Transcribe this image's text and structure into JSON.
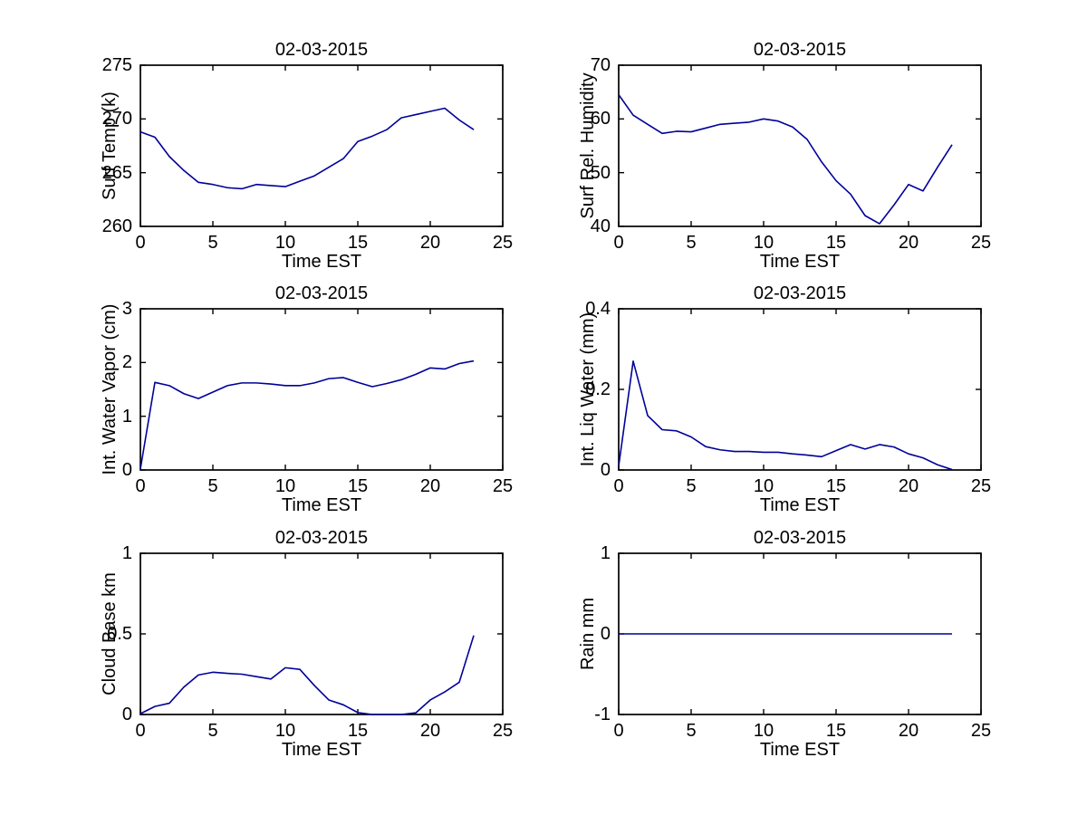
{
  "figure": {
    "background": "#ffffff",
    "axis_color": "#000000",
    "line_color": "#000099",
    "date_shown": "02-03-2015"
  },
  "chart_data": [
    {
      "type": "line",
      "title": "02-03-2015",
      "xlabel": "Time EST",
      "ylabel": "Surf Temp (k)",
      "xlim": [
        0,
        25
      ],
      "ylim": [
        260,
        275
      ],
      "xticks": [
        "0",
        "5",
        "10",
        "15",
        "20",
        "25"
      ],
      "yticks": [
        "260",
        "265",
        "270",
        "275"
      ],
      "grid": false,
      "legend": null,
      "x": [
        0,
        1,
        2,
        3,
        4,
        5,
        6,
        7,
        8,
        9,
        10,
        11,
        12,
        13,
        14,
        15,
        16,
        17,
        18,
        19,
        20,
        21,
        22,
        23
      ],
      "y": [
        268.8,
        268.3,
        266.5,
        265.2,
        264.1,
        263.9,
        263.6,
        263.5,
        263.9,
        263.8,
        263.7,
        264.2,
        264.7,
        265.5,
        266.3,
        267.9,
        268.4,
        269.0,
        270.1,
        270.4,
        270.7,
        271.0,
        269.9,
        269.0
      ]
    },
    {
      "type": "line",
      "title": "02-03-2015",
      "xlabel": "Time EST",
      "ylabel": "Surf Rel. Humidity",
      "xlim": [
        0,
        25
      ],
      "ylim": [
        40,
        70
      ],
      "xticks": [
        "0",
        "5",
        "10",
        "15",
        "20",
        "25"
      ],
      "yticks": [
        "40",
        "50",
        "60",
        "70"
      ],
      "grid": false,
      "legend": null,
      "x": [
        0,
        1,
        2,
        3,
        4,
        5,
        6,
        7,
        8,
        9,
        10,
        11,
        12,
        13,
        14,
        15,
        16,
        17,
        18,
        19,
        20,
        21,
        22,
        23
      ],
      "y": [
        64.5,
        60.7,
        59.0,
        57.3,
        57.7,
        57.6,
        58.3,
        59.0,
        59.2,
        59.4,
        60.0,
        59.6,
        58.5,
        56.2,
        52.0,
        48.5,
        46.0,
        42.0,
        40.5,
        44.0,
        47.8,
        46.6,
        51.0,
        55.2
      ]
    },
    {
      "type": "line",
      "title": "02-03-2015",
      "xlabel": "Time EST",
      "ylabel": "Int. Water Vapor (cm)",
      "xlim": [
        0,
        25
      ],
      "ylim": [
        0,
        3
      ],
      "xticks": [
        "0",
        "5",
        "10",
        "15",
        "20",
        "25"
      ],
      "yticks": [
        "0",
        "1",
        "2",
        "3"
      ],
      "grid": false,
      "legend": null,
      "x": [
        0,
        1,
        2,
        3,
        4,
        5,
        6,
        7,
        8,
        9,
        10,
        11,
        12,
        13,
        14,
        15,
        16,
        17,
        18,
        19,
        20,
        21,
        22,
        23
      ],
      "y": [
        0.02,
        1.63,
        1.57,
        1.42,
        1.33,
        1.45,
        1.57,
        1.62,
        1.62,
        1.6,
        1.57,
        1.57,
        1.62,
        1.7,
        1.72,
        1.63,
        1.55,
        1.61,
        1.68,
        1.78,
        1.9,
        1.88,
        1.98,
        2.03
      ]
    },
    {
      "type": "line",
      "title": "02-03-2015",
      "xlabel": "Time EST",
      "ylabel": "Int. Liq Water (mm)",
      "xlim": [
        0,
        25
      ],
      "ylim": [
        0,
        0.4
      ],
      "xticks": [
        "0",
        "5",
        "10",
        "15",
        "20",
        "25"
      ],
      "yticks": [
        "0",
        "0.2",
        "0.4"
      ],
      "grid": false,
      "legend": null,
      "x": [
        0,
        1,
        2,
        3,
        4,
        5,
        6,
        7,
        8,
        9,
        10,
        11,
        12,
        13,
        14,
        15,
        16,
        17,
        18,
        19,
        20,
        21,
        22,
        23
      ],
      "y": [
        0.01,
        0.27,
        0.135,
        0.1,
        0.097,
        0.082,
        0.058,
        0.05,
        0.046,
        0.046,
        0.044,
        0.044,
        0.04,
        0.037,
        0.033,
        0.048,
        0.063,
        0.052,
        0.063,
        0.057,
        0.04,
        0.03,
        0.013,
        0.001
      ]
    },
    {
      "type": "line",
      "title": "02-03-2015",
      "xlabel": "Time EST",
      "ylabel": "Cloud Base km",
      "xlim": [
        0,
        25
      ],
      "ylim": [
        0,
        1
      ],
      "xticks": [
        "0",
        "5",
        "10",
        "15",
        "20",
        "25"
      ],
      "yticks": [
        "0",
        "0.5",
        "1"
      ],
      "grid": false,
      "legend": null,
      "x": [
        0,
        1,
        2,
        3,
        4,
        5,
        6,
        7,
        8,
        9,
        10,
        11,
        12,
        13,
        14,
        15,
        16,
        17,
        18,
        19,
        20,
        21,
        22,
        23
      ],
      "y": [
        0.005,
        0.05,
        0.07,
        0.17,
        0.245,
        0.262,
        0.255,
        0.25,
        0.235,
        0.22,
        0.29,
        0.28,
        0.18,
        0.09,
        0.06,
        0.012,
        0.0,
        0.0,
        0.0,
        0.01,
        0.09,
        0.14,
        0.2,
        0.49
      ]
    },
    {
      "type": "line",
      "title": "02-03-2015",
      "xlabel": "Time EST",
      "ylabel": "Rain mm",
      "xlim": [
        0,
        25
      ],
      "ylim": [
        -1,
        1
      ],
      "xticks": [
        "0",
        "5",
        "10",
        "15",
        "20",
        "25"
      ],
      "yticks": [
        "-1",
        "0",
        "1"
      ],
      "grid": false,
      "legend": null,
      "x": [
        0,
        1,
        2,
        3,
        4,
        5,
        6,
        7,
        8,
        9,
        10,
        11,
        12,
        13,
        14,
        15,
        16,
        17,
        18,
        19,
        20,
        21,
        22,
        23
      ],
      "y": [
        0,
        0,
        0,
        0,
        0,
        0,
        0,
        0,
        0,
        0,
        0,
        0,
        0,
        0,
        0,
        0,
        0,
        0,
        0,
        0,
        0,
        0,
        0,
        0
      ]
    }
  ]
}
